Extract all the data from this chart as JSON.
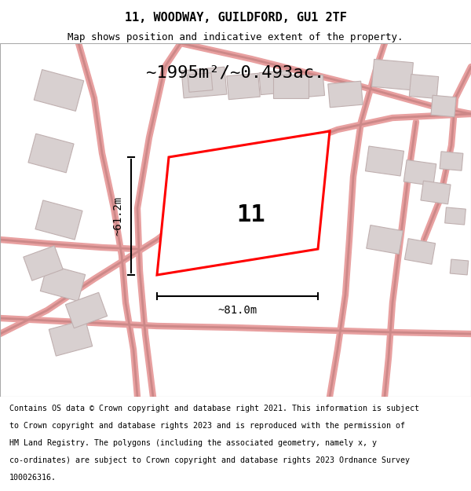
{
  "title": "11, WOODWAY, GUILDFORD, GU1 2TF",
  "subtitle": "Map shows position and indicative extent of the property.",
  "area_text": "~1995m²/~0.493ac.",
  "plot_number": "11",
  "dim_width": "~81.0m",
  "dim_height": "~61.2m",
  "footer": "Contains OS data © Crown copyright and database right 2021. This information is subject to Crown copyright and database rights 2023 and is reproduced with the permission of HM Land Registry. The polygons (including the associated geometry, namely x, y co-ordinates) are subject to Crown copyright and database rights 2023 Ordnance Survey 100026316.",
  "map_bg": "#f5f0f0",
  "road_color": "#e8a0a0",
  "building_color": "#d8d0d0",
  "building_edge": "#c0b0b0",
  "plot_color": "#ff0000",
  "plot_fill": "#ffffff",
  "title_color": "#000000",
  "footer_color": "#000000",
  "header_bg": "#ffffff",
  "footer_bg": "#ffffff",
  "map_border_color": "#cccccc"
}
